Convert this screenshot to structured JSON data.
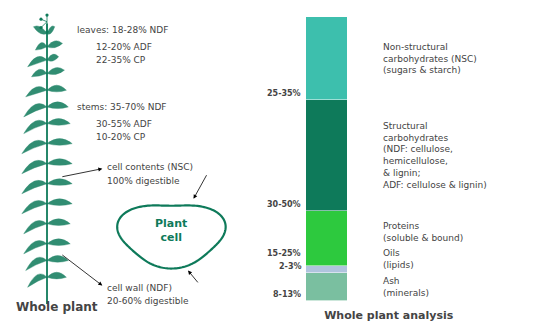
{
  "chart_data": {
    "type": "bar",
    "stacked": true,
    "title": "Whole plant analysis",
    "categories": [
      null
    ],
    "ylim": [
      0,
      102.5
    ],
    "tick_labels": false,
    "color": "#0e7a5a",
    "series": [
      {
        "name": "Ash\n(minerals)",
        "color": "#7abfa0",
        "values": [
          10
        ],
        "value_labels": [
          "8-13%"
        ]
      },
      {
        "name": "Oils\n(lipids)",
        "color": "#b0c4de",
        "values": [
          2.5
        ],
        "value_labels": [
          "2-3%"
        ]
      },
      {
        "name": "Proteins\n(soluble & bound)",
        "color": "#2dc93e",
        "values": [
          20
        ],
        "value_labels": [
          "15-25%"
        ]
      },
      {
        "name": "Structural\ncarbohydrates\n(NDF: cellulose,\nhemicellulose,\n& lignin;\nADF: cellulose & lignin)",
        "color": "#0e7a5a",
        "values": [
          40
        ],
        "value_labels": [
          "30-50%"
        ]
      },
      {
        "name": "Non-structural\ncarbohydrates (NSC)\n(sugars & starch)",
        "color": "#3dbfad",
        "values": [
          30
        ],
        "value_labels": [
          "25-35%"
        ]
      }
    ],
    "annotations": [
      "leaves: 18-28% NDF",
      "12-20% ADF",
      "22-35% CP",
      "stems: 35-70% NDF",
      "30-55% ADF",
      "10-20% CP",
      "cell contents (NSC)",
      "100% digestible",
      "cell wall (NDF)",
      "20-60% digestible",
      "Plant\ncell",
      "Whole plant"
    ]
  }
}
